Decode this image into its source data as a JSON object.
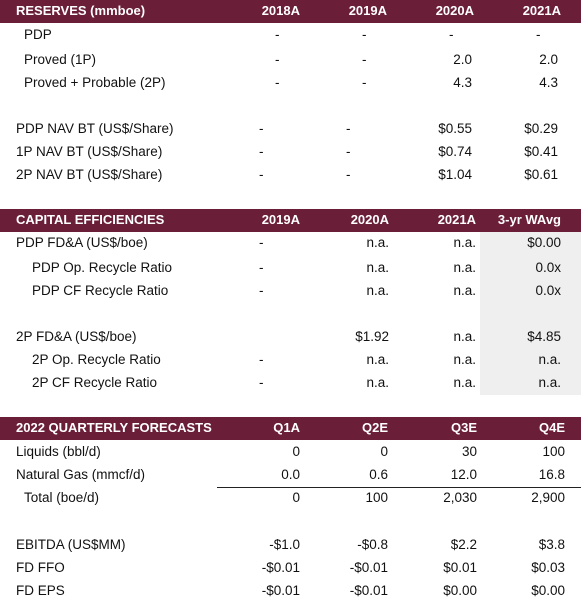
{
  "sections": [
    {
      "header": [
        "RESERVES (mmboe)",
        "2018A",
        "2019A",
        "2020A",
        "2021A"
      ],
      "rows": [
        {
          "label": "PDP",
          "cells": [
            "-",
            "-",
            "-",
            "-"
          ]
        },
        {
          "label": "Proved (1P)",
          "cells": [
            "-",
            "-",
            "2.0",
            "2.0"
          ]
        },
        {
          "label": "Proved + Probable (2P)",
          "cells": [
            "-",
            "-",
            "4.3",
            "4.3"
          ]
        },
        {
          "label": "PDP NAV BT (US$/Share)",
          "cells": [
            "-",
            "-",
            "$0.55",
            "$0.29"
          ]
        },
        {
          "label": "1P NAV BT (US$/Share)",
          "cells": [
            "-",
            "-",
            "$0.74",
            "$0.41"
          ]
        },
        {
          "label": "2P NAV BT (US$/Share)",
          "cells": [
            "-",
            "-",
            "$1.04",
            "$0.61"
          ]
        }
      ]
    },
    {
      "header": [
        "CAPITAL EFFICIENCIES",
        "2019A",
        "2020A",
        "2021A",
        "3-yr WAvg"
      ],
      "rows": [
        {
          "label": "PDP FD&A (US$/boe)",
          "cells": [
            "-",
            "n.a.",
            "n.a.",
            "$0.00"
          ]
        },
        {
          "label": "PDP Op. Recycle Ratio",
          "cells": [
            "-",
            "n.a.",
            "n.a.",
            "0.0x"
          ]
        },
        {
          "label": "PDP CF Recycle Ratio",
          "cells": [
            "-",
            "n.a.",
            "n.a.",
            "0.0x"
          ]
        },
        {
          "label": "2P FD&A (US$/boe)",
          "cells": [
            null,
            "$1.92",
            "n.a.",
            "$4.85"
          ]
        },
        {
          "label": "2P Op. Recycle Ratio",
          "cells": [
            "-",
            "n.a.",
            "n.a.",
            "n.a."
          ]
        },
        {
          "label": "2P CF Recycle Ratio",
          "cells": [
            "-",
            "n.a.",
            "n.a.",
            "n.a."
          ]
        }
      ]
    },
    {
      "header": [
        "2022 QUARTERLY FORECASTS",
        "Q1A",
        "Q2E",
        "Q3E",
        "Q4E"
      ],
      "rows": [
        {
          "label": "Liquids (bbl/d)",
          "cells": [
            "0",
            "0",
            "30",
            "100"
          ]
        },
        {
          "label": "Natural Gas (mmcf/d)",
          "cells": [
            "0.0",
            "0.6",
            "12.0",
            "16.8"
          ]
        },
        {
          "label": "Total (boe/d)",
          "cells": [
            "0",
            "100",
            "2,030",
            "2,900"
          ]
        },
        {
          "label": "EBITDA (US$MM)",
          "cells": [
            "-$1.0",
            "-$0.8",
            "$2.2",
            "$3.8"
          ]
        },
        {
          "label": "FD FFO",
          "cells": [
            "-$0.01",
            "-$0.01",
            "$0.01",
            "$0.03"
          ]
        },
        {
          "label": "FD EPS",
          "cells": [
            "-$0.01",
            "-$0.01",
            "$0.00",
            "$0.00"
          ]
        }
      ]
    }
  ]
}
